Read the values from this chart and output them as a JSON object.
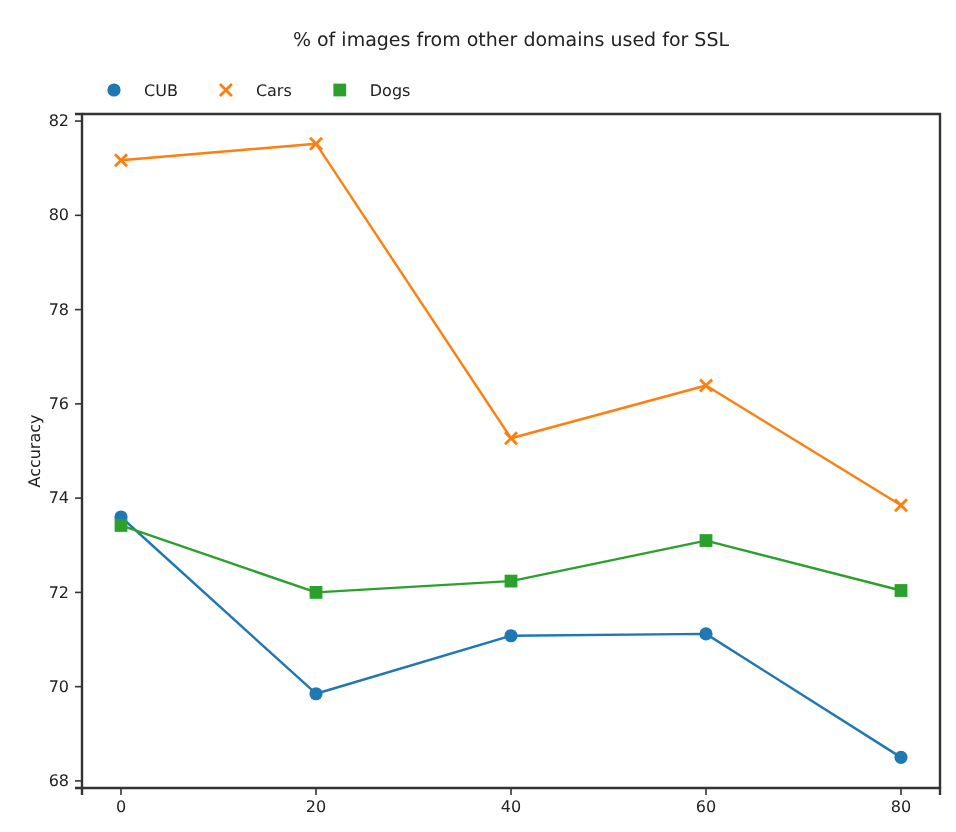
{
  "chart_data": {
    "type": "line",
    "title": "% of images from other domains used for SSL",
    "ylabel": "Accuracy",
    "x": [
      0,
      20,
      40,
      60,
      80
    ],
    "series": [
      {
        "name": "CUB",
        "color": "#1f77b4",
        "marker": "circle",
        "values": [
          73.6,
          69.85,
          71.08,
          71.12,
          68.5
        ]
      },
      {
        "name": "Cars",
        "color": "#ff7f0e",
        "marker": "cross",
        "values": [
          81.17,
          81.52,
          75.27,
          76.39,
          73.85
        ]
      },
      {
        "name": "Dogs",
        "color": "#2ca02c",
        "marker": "square",
        "values": [
          73.42,
          72.0,
          72.24,
          73.1,
          72.04
        ]
      }
    ],
    "xlim": [
      -4,
      84
    ],
    "xticks": [
      0,
      20,
      40,
      60,
      80
    ],
    "ylim": [
      67.85,
      82.15
    ],
    "yticks": [
      68,
      70,
      72,
      74,
      76,
      78,
      80,
      82
    ],
    "legend": "top left",
    "grid": false,
    "line_style": "solid"
  }
}
